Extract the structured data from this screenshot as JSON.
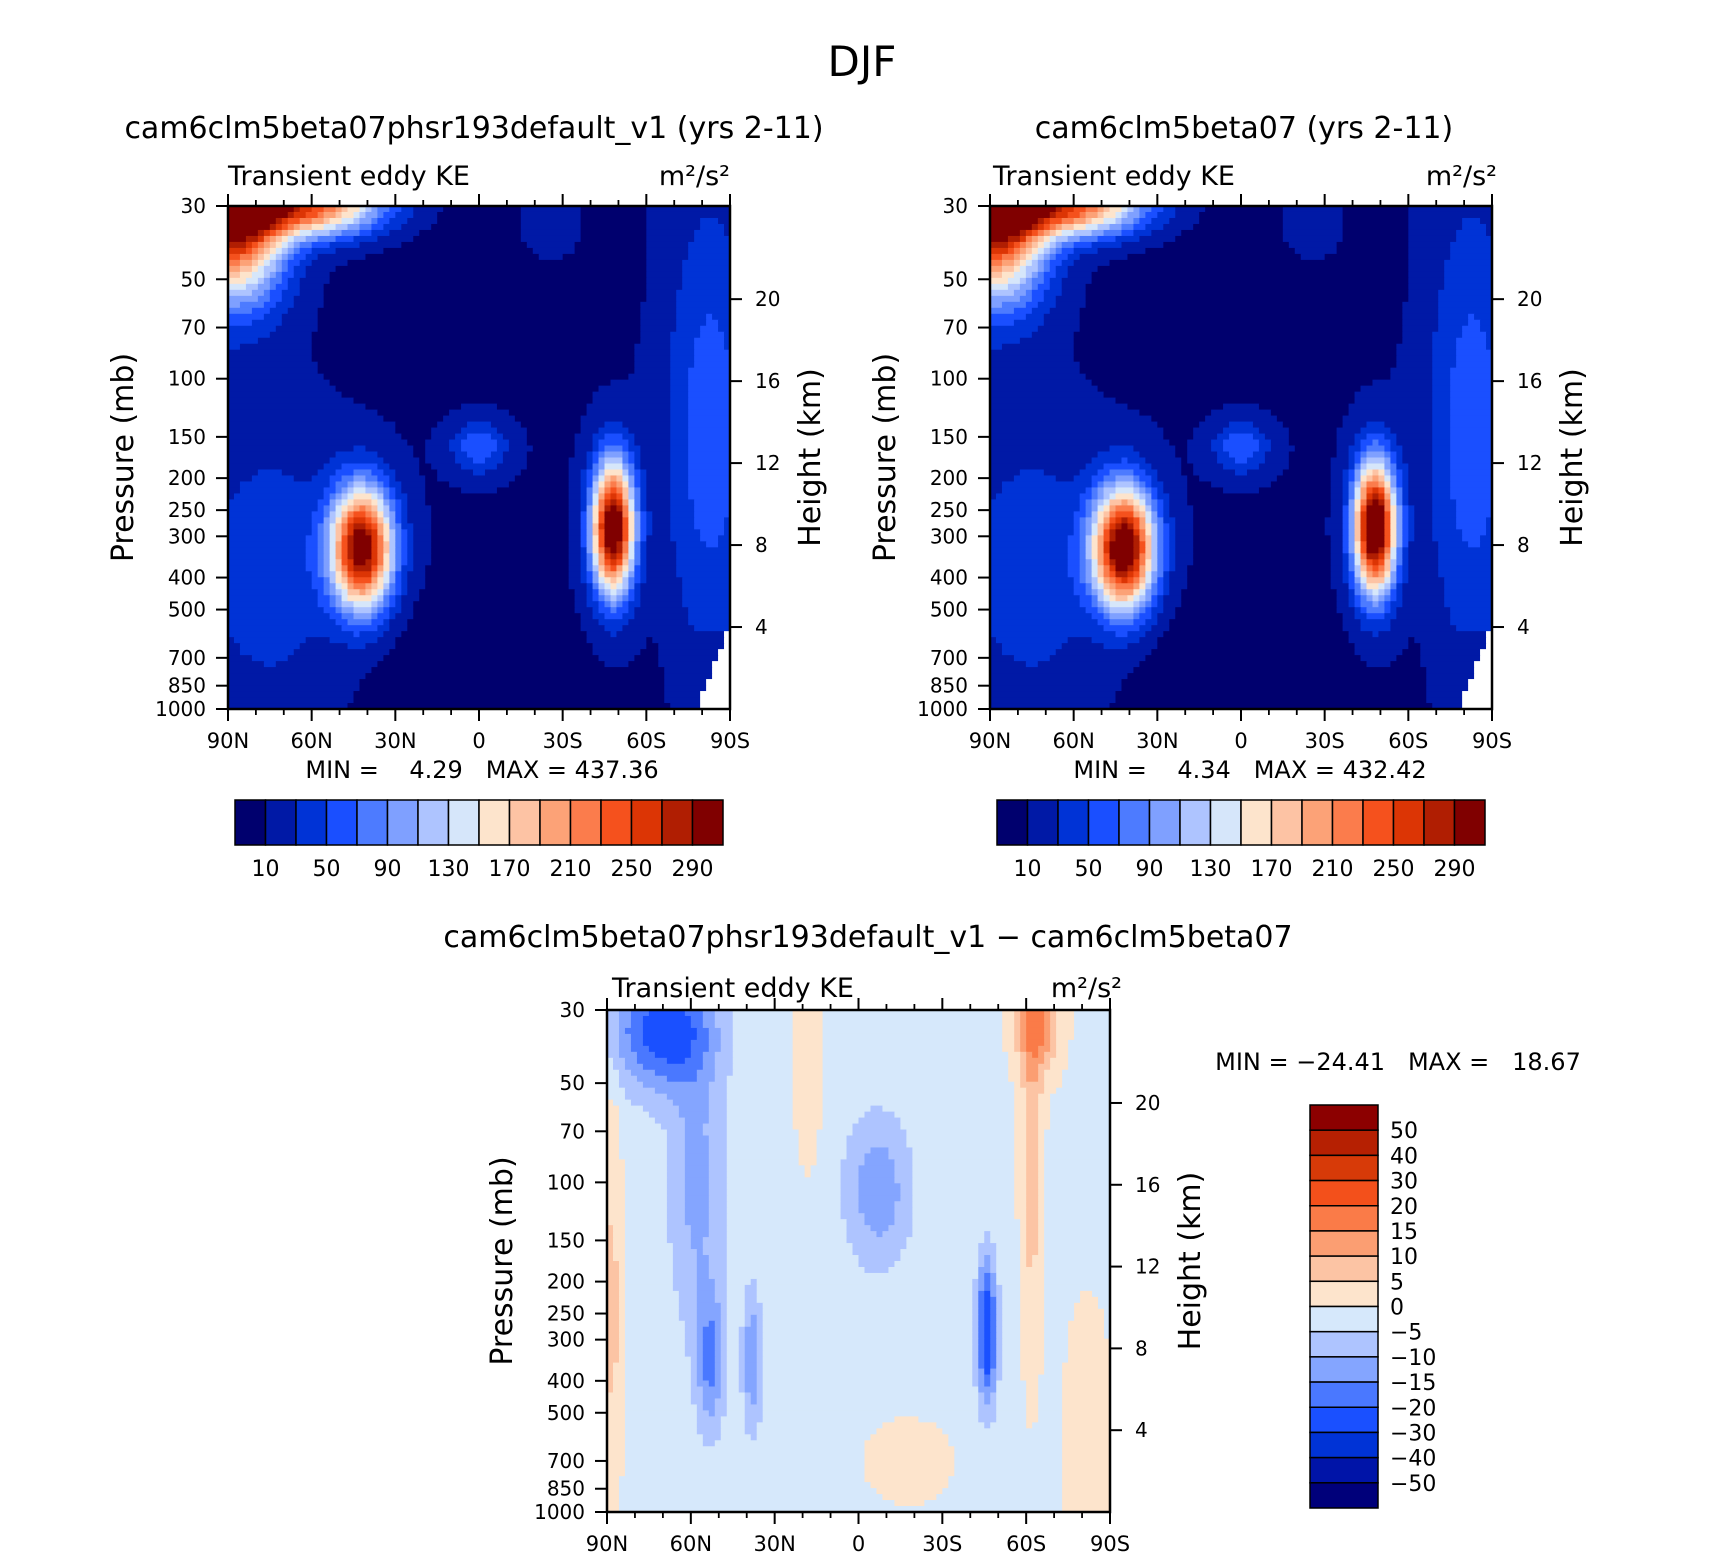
{
  "figure": {
    "title": "DJF"
  },
  "colors": {
    "abs_levels": [
      "#00006e",
      "#0019a6",
      "#0033d6",
      "#1a4fff",
      "#4d7bff",
      "#7fa0ff",
      "#aec4ff",
      "#d6e6fa",
      "#fde4cc",
      "#fdc3a4",
      "#fca277",
      "#fb7c4c",
      "#f5511d",
      "#dc3505",
      "#b01e02",
      "#800000"
    ],
    "diff_levels": [
      "#00007a",
      "#0014a8",
      "#0033d6",
      "#1a50ff",
      "#4a78ff",
      "#84a5ff",
      "#aec4ff",
      "#d6e8fb",
      "#fde4cc",
      "#fcc4a4",
      "#fb9e72",
      "#fa7b48",
      "#f3501b",
      "#d73a08",
      "#b62002",
      "#8c0000"
    ]
  },
  "chart_data": [
    {
      "type": "heatmap",
      "title": "cam6clm5beta07phsr193default_v1 (yrs 2-11)",
      "variable": "Transient eddy KE",
      "units": "m²/s²",
      "min_max": "MIN =    4.29   MAX = 437.36",
      "min": 4.29,
      "max": 437.36,
      "xlabel": "",
      "ylabel": "Pressure (mb)",
      "ylabel_right": "Height (km)",
      "x_ticks": [
        "90N",
        "60N",
        "30N",
        "0",
        "30S",
        "60S",
        "90S"
      ],
      "y_ticks": [
        "30",
        "50",
        "70",
        "100",
        "150",
        "200",
        "250",
        "300",
        "400",
        "500",
        "700",
        "850",
        "1000"
      ],
      "y_ticks_right": [
        "20",
        "16",
        "12",
        "8",
        "4"
      ],
      "colorbar_labels": [
        "10",
        "50",
        "90",
        "130",
        "170",
        "210",
        "250",
        "290"
      ],
      "contour_levels": [
        10,
        30,
        50,
        70,
        90,
        110,
        130,
        150,
        170,
        190,
        210,
        230,
        250,
        270,
        290
      ]
    },
    {
      "type": "heatmap",
      "title": "cam6clm5beta07 (yrs 2-11)",
      "variable": "Transient eddy KE",
      "units": "m²/s²",
      "min_max": "MIN =    4.34   MAX = 432.42",
      "min": 4.34,
      "max": 432.42,
      "xlabel": "",
      "ylabel": "Pressure (mb)",
      "ylabel_right": "Height (km)",
      "x_ticks": [
        "90N",
        "60N",
        "30N",
        "0",
        "30S",
        "60S",
        "90S"
      ],
      "y_ticks": [
        "30",
        "50",
        "70",
        "100",
        "150",
        "200",
        "250",
        "300",
        "400",
        "500",
        "700",
        "850",
        "1000"
      ],
      "y_ticks_right": [
        "20",
        "16",
        "12",
        "8",
        "4"
      ],
      "colorbar_labels": [
        "10",
        "50",
        "90",
        "130",
        "170",
        "210",
        "250",
        "290"
      ],
      "contour_levels": [
        10,
        30,
        50,
        70,
        90,
        110,
        130,
        150,
        170,
        190,
        210,
        230,
        250,
        270,
        290
      ]
    },
    {
      "type": "heatmap",
      "title": "cam6clm5beta07phsr193default_v1 − cam6clm5beta07",
      "variable": "Transient eddy KE",
      "units": "m²/s²",
      "min_max": "MIN = −24.41   MAX =   18.67",
      "min": -24.41,
      "max": 18.67,
      "xlabel": "",
      "ylabel": "Pressure (mb)",
      "ylabel_right": "Height (km)",
      "x_ticks": [
        "90N",
        "60N",
        "30N",
        "0",
        "30S",
        "60S",
        "90S"
      ],
      "y_ticks": [
        "30",
        "50",
        "70",
        "100",
        "150",
        "200",
        "250",
        "300",
        "400",
        "500",
        "700",
        "850",
        "1000"
      ],
      "y_ticks_right": [
        "20",
        "16",
        "12",
        "8",
        "4"
      ],
      "colorbar_labels": [
        "50",
        "40",
        "30",
        "20",
        "15",
        "10",
        "5",
        "0",
        "−5",
        "−10",
        "−15",
        "−20",
        "−30",
        "−40",
        "−50"
      ],
      "contour_levels": [
        -50,
        -40,
        -30,
        -20,
        -15,
        -10,
        -5,
        0,
        5,
        10,
        15,
        20,
        30,
        40,
        50
      ]
    }
  ]
}
